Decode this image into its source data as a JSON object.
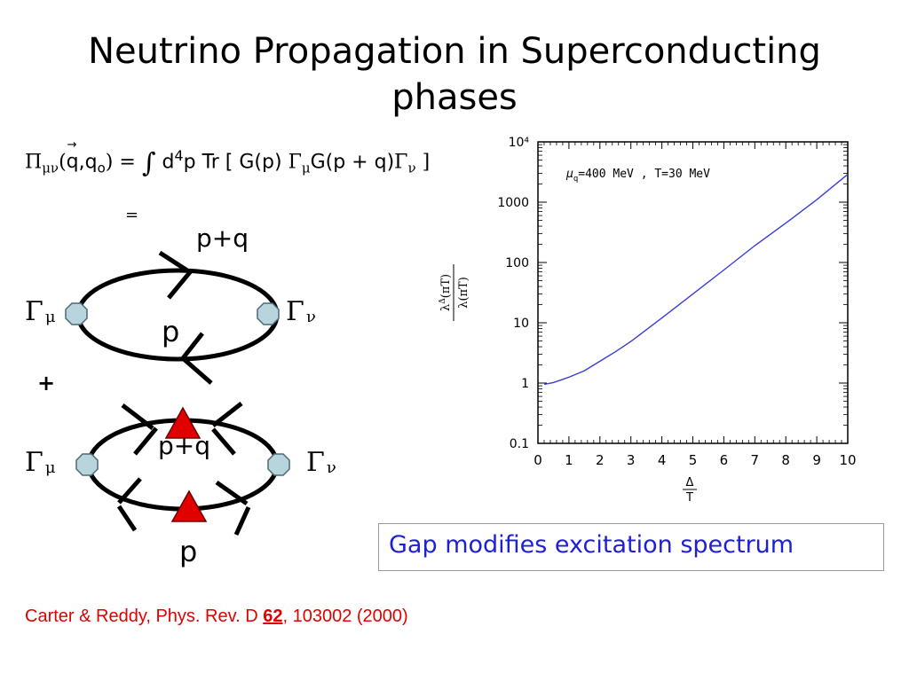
{
  "title": {
    "line1": "Neutrino Propagation in Superconducting",
    "line2": "phases"
  },
  "formula": {
    "lhs_symbol": "Π",
    "lhs_sub": "μν",
    "lhs_args_open": "(",
    "lhs_vec": "q",
    "lhs_comma": ",",
    "lhs_q0": "q",
    "lhs_q0_sub": "o",
    "lhs_args_close": ")",
    "equals": "=",
    "integral": "∫",
    "measure_d": "d",
    "measure_exp": "4",
    "measure_p": "p Tr [ G(p)",
    "gamma_mu": "Γ",
    "gamma_mu_sub": "μ",
    "prop2": "G(p + q)",
    "gamma_nu": "Γ",
    "gamma_nu_sub": "ν",
    "close_bracket": "]",
    "second_equals": "="
  },
  "diagram": {
    "top_label_pq": "p+q",
    "top_label_p": "p",
    "plus": "+",
    "bottom_label_pq": "p+q",
    "bottom_label_p": "p",
    "vertex_left": {
      "symbol": "Γ",
      "sub": "μ"
    },
    "vertex_right": {
      "symbol": "Γ",
      "sub": "ν"
    },
    "vertex_left2": {
      "symbol": "Γ",
      "sub": "μ"
    },
    "vertex_right2": {
      "symbol": "Γ",
      "sub": "ν"
    },
    "vertex_color": "#b8d4dd",
    "triangle_color": "#e00000"
  },
  "chart_data": {
    "type": "line",
    "annotation": "μ_q=400 MeV , T=30 MeV",
    "annotation_main": "μ",
    "annotation_sub": "q",
    "annotation_rest": "=400 MeV , T=30 MeV",
    "ylabel_num": "λ^Δ(πT)",
    "ylabel_num_base": "λ",
    "ylabel_num_sup": "Δ",
    "ylabel_num_rest": "(πT)",
    "ylabel_den": "λ(πT)",
    "xlabel_num": "Δ",
    "xlabel_den": "T",
    "y_scale": "log",
    "ylim": [
      0.1,
      10000
    ],
    "xlim": [
      0,
      10
    ],
    "y_ticks": [
      {
        "value": 0.1,
        "label": "0.1"
      },
      {
        "value": 1,
        "label": "1"
      },
      {
        "value": 10,
        "label": "10"
      },
      {
        "value": 100,
        "label": "100"
      },
      {
        "value": 1000,
        "label": "1000"
      },
      {
        "value": 10000,
        "label": "10⁴"
      }
    ],
    "x_ticks": [
      {
        "value": 0,
        "label": "0"
      },
      {
        "value": 1,
        "label": "1"
      },
      {
        "value": 2,
        "label": "2"
      },
      {
        "value": 3,
        "label": "3"
      },
      {
        "value": 4,
        "label": "4"
      },
      {
        "value": 5,
        "label": "5"
      },
      {
        "value": 6,
        "label": "6"
      },
      {
        "value": 7,
        "label": "7"
      },
      {
        "value": 8,
        "label": "8"
      },
      {
        "value": 9,
        "label": "9"
      },
      {
        "value": 10,
        "label": "10"
      }
    ],
    "series": [
      {
        "color": "#3b3bd6",
        "x": [
          0.2,
          0.5,
          1,
          1.5,
          2,
          2.5,
          3,
          4,
          5,
          6,
          7,
          8,
          9,
          10
        ],
        "y": [
          0.95,
          1.02,
          1.25,
          1.6,
          2.3,
          3.3,
          4.9,
          12,
          30,
          75,
          190,
          450,
          1100,
          2900
        ]
      }
    ]
  },
  "callout": {
    "text": "Gap modifies excitation spectrum",
    "text_color": "#1f1fd6",
    "border_color": "#9a9a9a"
  },
  "citation": {
    "prefix": "Carter & Reddy, Phys. Rev. D ",
    "volume": "62",
    "suffix": ", 103002 (2000)",
    "color": "#e00000"
  }
}
